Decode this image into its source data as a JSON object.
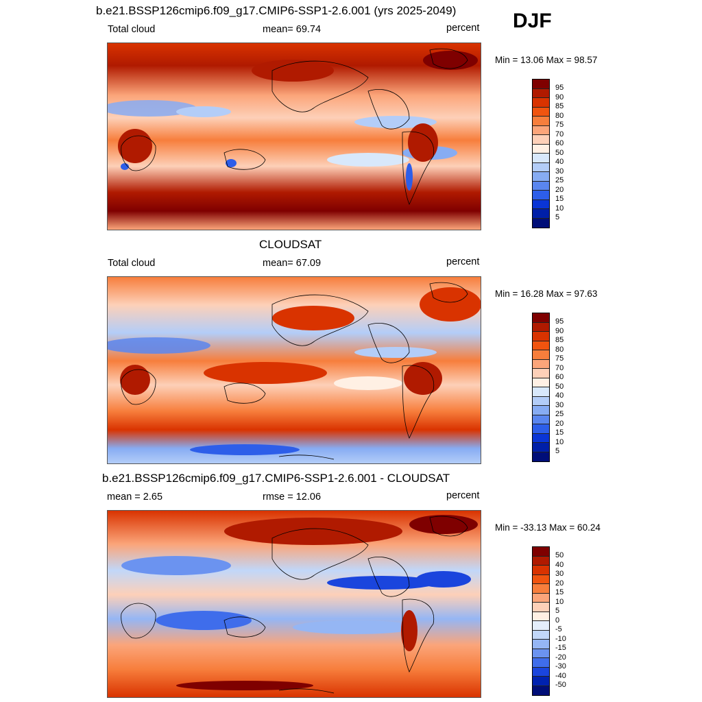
{
  "season": "DJF",
  "panels": [
    {
      "title": "b.e21.BSSP126cmip6.f09_g17.CMIP6-SSP1-2.6.001 (yrs 2025-2049)",
      "left_label": "Total cloud",
      "center_label": "mean=  69.74",
      "right_label": "percent",
      "minmax": "Min =  13.06 Max =  98.57",
      "colorbar_labels": [
        "95",
        "90",
        "85",
        "80",
        "75",
        "70",
        "60",
        "50",
        "40",
        "30",
        "25",
        "20",
        "15",
        "10",
        "5"
      ]
    },
    {
      "title": "CLOUDSAT",
      "left_label": "Total cloud",
      "center_label": "mean=  67.09",
      "right_label": "percent",
      "minmax": "Min =  16.28 Max =  97.63",
      "colorbar_labels": [
        "95",
        "90",
        "85",
        "80",
        "75",
        "70",
        "60",
        "50",
        "40",
        "30",
        "25",
        "20",
        "15",
        "10",
        "5"
      ]
    },
    {
      "title": "b.e21.BSSP126cmip6.f09_g17.CMIP6-SSP1-2.6.001 - CLOUDSAT",
      "left_label": "mean =   2.65",
      "center_label": "rmse =  12.06",
      "right_label": "percent",
      "minmax": "Min = -33.13 Max =  60.24",
      "colorbar_labels": [
        "50",
        "40",
        "30",
        "20",
        "15",
        "10",
        "5",
        "0",
        "-5",
        "-10",
        "-15",
        "-20",
        "-30",
        "-40",
        "-50"
      ]
    }
  ],
  "colors": {
    "abs_scale": [
      "#7f0000",
      "#b01a00",
      "#d93300",
      "#f0540f",
      "#f77e3c",
      "#fba57a",
      "#fdd0b8",
      "#fff0e4",
      "#d8e8fb",
      "#b3cdf8",
      "#87acf3",
      "#5a86ef",
      "#2d5ee9",
      "#0a35d6",
      "#001fa8",
      "#000e78"
    ],
    "diff_scale": [
      "#7f0000",
      "#b01a00",
      "#d93300",
      "#f0540f",
      "#f77e3c",
      "#fba57a",
      "#fdd0b8",
      "#fff0e4",
      "#e4eefb",
      "#c1d7f9",
      "#95b6f4",
      "#6b93f0",
      "#3f6deb",
      "#1a45dd",
      "#0022b0",
      "#000e78"
    ]
  }
}
